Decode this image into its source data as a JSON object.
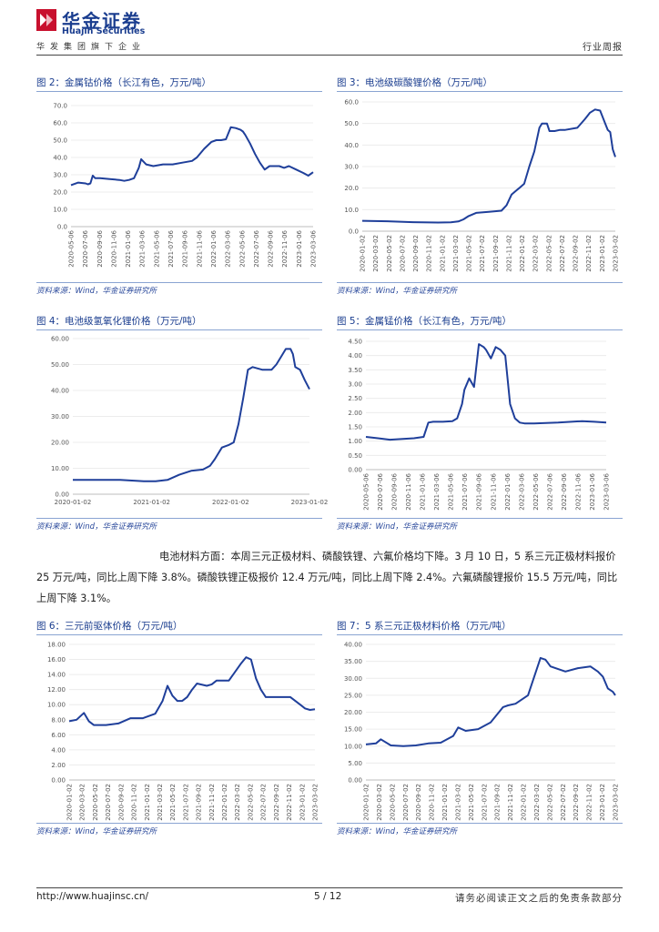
{
  "header": {
    "company_cn": "华金证券",
    "company_en": "Huajin Securities",
    "tagline": "华发集团旗下企业",
    "report_type": "行业周报"
  },
  "colors": {
    "brand": "#1a3d8f",
    "series": "#1f3f9a",
    "axis": "#d0d0d0"
  },
  "figures": [
    {
      "title": "图 2：金属钴价格（长江有色，万元/吨）",
      "source": "资料来源：Wind，华金证券研究所"
    },
    {
      "title": "图 3：电池级碳酸锂价格（万元/吨）",
      "source": "资料来源：Wind，华金证券研究所"
    },
    {
      "title": "图 4：电池级氢氧化锂价格（万元/吨）",
      "source": "资料来源：Wind，华金证券研究所"
    },
    {
      "title": "图 5：金属锰价格（长江有色，万元/吨）",
      "source": "资料来源：Wind，华金证券研究所"
    },
    {
      "title": "图 6：三元前驱体价格（万元/吨）",
      "source": "资料来源：Wind，华金证券研究所"
    },
    {
      "title": "图 7：5 系三元正极材料价格（万元/吨）",
      "source": "资料来源：Wind，华金证券研究所"
    }
  ],
  "paragraph": "电池材料方面：本周三元正极材料、磷酸铁锂、六氟价格均下降。3 月 10 日，5 系三元正极材料报价 25 万元/吨，同比上周下降 3.8%。磷酸铁锂正极报价 12.4 万元/吨，同比上周下降 2.4%。六氟磷酸锂报价 15.5 万元/吨，同比上周下降 3.1%。",
  "footer": {
    "url": "http://www.huajinsc.cn/",
    "page": "5 / 12",
    "disclaimer": "请务必阅读正文之后的免责条款部分"
  },
  "chart_data": [
    {
      "type": "line",
      "title": "金属钴价格（长江有色，万元/吨）",
      "ylim": [
        0,
        70
      ],
      "yticks": [
        "0.0",
        "10.0",
        "20.0",
        "30.0",
        "40.0",
        "50.0",
        "60.0",
        "70.0"
      ],
      "xticks": [
        "2020-05-06",
        "2020-07-06",
        "2020-09-06",
        "2020-11-06",
        "2021-01-06",
        "2021-03-06",
        "2021-05-06",
        "2021-07-06",
        "2021-09-06",
        "2021-11-06",
        "2022-01-06",
        "2022-03-06",
        "2022-05-06",
        "2022-07-06",
        "2022-09-06",
        "2022-11-06",
        "2023-01-06",
        "2023-03-06"
      ],
      "x": [
        0,
        0.03,
        0.06,
        0.07,
        0.08,
        0.09,
        0.1,
        0.12,
        0.16,
        0.2,
        0.22,
        0.24,
        0.26,
        0.28,
        0.29,
        0.31,
        0.34,
        0.38,
        0.42,
        0.46,
        0.5,
        0.52,
        0.55,
        0.58,
        0.6,
        0.62,
        0.64,
        0.66,
        0.68,
        0.7,
        0.71,
        0.72,
        0.74,
        0.76,
        0.78,
        0.8,
        0.82,
        0.84,
        0.86,
        0.88,
        0.9,
        0.93,
        0.96,
        0.98,
        1
      ],
      "values": [
        24,
        25.5,
        25,
        24.5,
        25,
        29.5,
        28,
        28,
        27.5,
        27,
        26.5,
        27,
        28,
        34,
        39,
        36,
        35,
        36,
        36,
        37,
        38,
        40,
        45,
        49,
        50,
        50,
        50.5,
        57.5,
        57,
        56,
        55,
        53,
        48,
        42,
        37,
        33,
        35,
        35,
        35,
        34,
        35,
        33,
        31,
        29.5,
        31.5
      ]
    },
    {
      "type": "line",
      "title": "电池级碳酸锂价格（万元/吨）",
      "ylim": [
        0,
        60
      ],
      "yticks": [
        "0.0",
        "10.0",
        "20.0",
        "30.0",
        "40.0",
        "50.0",
        "60.0"
      ],
      "xticks": [
        "2020-01-02",
        "2020-03-02",
        "2020-05-02",
        "2020-07-02",
        "2020-09-02",
        "2020-11-02",
        "2021-01-02",
        "2021-03-02",
        "2021-05-02",
        "2021-07-02",
        "2021-09-02",
        "2021-11-02",
        "2022-01-02",
        "2022-03-02",
        "2022-05-02",
        "2022-07-02",
        "2022-09-02",
        "2022-11-02",
        "2023-01-02",
        "2023-03-02"
      ],
      "x": [
        0,
        0.1,
        0.2,
        0.3,
        0.35,
        0.38,
        0.4,
        0.42,
        0.45,
        0.5,
        0.55,
        0.57,
        0.59,
        0.61,
        0.62,
        0.64,
        0.66,
        0.68,
        0.7,
        0.71,
        0.72,
        0.73,
        0.74,
        0.76,
        0.78,
        0.8,
        0.85,
        0.88,
        0.9,
        0.92,
        0.94,
        0.96,
        0.97,
        0.98,
        0.99,
        1
      ],
      "values": [
        4.8,
        4.6,
        4.2,
        4.0,
        4.1,
        4.5,
        5.5,
        7,
        8.5,
        9,
        9.5,
        12,
        17,
        19,
        20,
        22,
        30,
        37,
        48,
        50,
        50,
        50,
        46.5,
        46.5,
        47,
        47,
        48,
        52,
        55,
        56.5,
        56,
        50,
        47,
        46,
        38,
        34.5
      ]
    },
    {
      "type": "line",
      "title": "电池级氢氧化锂价格（万元/吨）",
      "ylim": [
        0,
        60
      ],
      "yticks": [
        "0.00",
        "10.00",
        "20.00",
        "30.00",
        "40.00",
        "50.00",
        "60.00"
      ],
      "xticks": [
        "2020-01-02",
        "2021-01-02",
        "2022-01-02",
        "2023-01-02"
      ],
      "x": [
        0,
        0.1,
        0.2,
        0.3,
        0.35,
        0.4,
        0.45,
        0.5,
        0.55,
        0.58,
        0.6,
        0.63,
        0.66,
        0.68,
        0.7,
        0.72,
        0.74,
        0.76,
        0.8,
        0.84,
        0.86,
        0.88,
        0.9,
        0.92,
        0.93,
        0.94,
        0.96,
        0.98,
        1
      ],
      "values": [
        5.5,
        5.5,
        5.5,
        5,
        5,
        5.5,
        7.5,
        9,
        9.5,
        11,
        13.5,
        18,
        19,
        20,
        27,
        37,
        48,
        49,
        48,
        48,
        50,
        53,
        56,
        56,
        54,
        49,
        48,
        44,
        40.5
      ]
    },
    {
      "type": "line",
      "title": "金属锰价格（长江有色，万元/吨）",
      "ylim": [
        0,
        4.5
      ],
      "yticks": [
        "0.00",
        "0.50",
        "1.00",
        "1.50",
        "2.00",
        "2.50",
        "3.00",
        "3.50",
        "4.00",
        "4.50"
      ],
      "xticks": [
        "2020-05-06",
        "2020-07-06",
        "2020-09-06",
        "2020-11-06",
        "2021-01-06",
        "2021-03-06",
        "2021-05-06",
        "2021-07-06",
        "2021-09-06",
        "2021-11-06",
        "2022-01-06",
        "2022-03-06",
        "2022-05-06",
        "2022-07-06",
        "2022-09-06",
        "2022-11-06",
        "2023-01-06",
        "2023-03-06"
      ],
      "x": [
        0,
        0.05,
        0.1,
        0.2,
        0.24,
        0.26,
        0.28,
        0.32,
        0.36,
        0.38,
        0.4,
        0.41,
        0.43,
        0.45,
        0.47,
        0.49,
        0.5,
        0.52,
        0.54,
        0.56,
        0.58,
        0.6,
        0.62,
        0.64,
        0.66,
        0.7,
        0.8,
        0.9,
        0.95,
        1
      ],
      "values": [
        1.15,
        1.1,
        1.05,
        1.1,
        1.15,
        1.65,
        1.68,
        1.68,
        1.7,
        1.8,
        2.3,
        2.8,
        3.2,
        2.9,
        4.4,
        4.3,
        4.2,
        3.9,
        4.3,
        4.2,
        4.0,
        2.3,
        1.8,
        1.65,
        1.62,
        1.62,
        1.65,
        1.7,
        1.68,
        1.65
      ]
    },
    {
      "type": "line",
      "title": "三元前驱体价格（万元/吨）",
      "ylim": [
        0,
        18
      ],
      "yticks": [
        "0.00",
        "2.00",
        "4.00",
        "6.00",
        "8.00",
        "10.00",
        "12.00",
        "14.00",
        "16.00",
        "18.00"
      ],
      "xticks": [
        "2020-01-02",
        "2020-03-02",
        "2020-05-02",
        "2020-07-02",
        "2020-09-02",
        "2020-11-02",
        "2021-01-02",
        "2021-03-02",
        "2021-05-02",
        "2021-07-02",
        "2021-09-02",
        "2021-11-02",
        "2022-01-02",
        "2022-03-02",
        "2022-05-02",
        "2022-07-02",
        "2022-09-02",
        "2022-11-02",
        "2023-01-02",
        "2023-03-02"
      ],
      "x": [
        0,
        0.03,
        0.06,
        0.08,
        0.1,
        0.15,
        0.2,
        0.25,
        0.3,
        0.35,
        0.38,
        0.4,
        0.42,
        0.44,
        0.46,
        0.48,
        0.5,
        0.52,
        0.56,
        0.58,
        0.6,
        0.65,
        0.7,
        0.72,
        0.74,
        0.76,
        0.78,
        0.8,
        0.82,
        0.85,
        0.9,
        0.94,
        0.96,
        0.98,
        1
      ],
      "values": [
        7.8,
        8,
        8.9,
        7.8,
        7.3,
        7.3,
        7.5,
        8.2,
        8.2,
        8.8,
        10.5,
        12.5,
        11.2,
        10.5,
        10.5,
        11,
        12,
        12.8,
        12.5,
        12.7,
        13.2,
        13.2,
        15.5,
        16.3,
        16,
        13.5,
        12,
        11,
        11,
        11,
        11,
        10,
        9.5,
        9.3,
        9.4
      ]
    },
    {
      "type": "line",
      "title": "5 系三元正极材料价格（万元/吨）",
      "ylim": [
        0,
        40
      ],
      "yticks": [
        "0.00",
        "5.00",
        "10.00",
        "15.00",
        "20.00",
        "25.00",
        "30.00",
        "35.00",
        "40.00"
      ],
      "xticks": [
        "2020-01-02",
        "2020-03-02",
        "2020-05-02",
        "2020-07-02",
        "2020-09-02",
        "2020-11-02",
        "2021-01-02",
        "2021-03-02",
        "2021-05-02",
        "2021-07-02",
        "2021-09-02",
        "2021-11-02",
        "2022-01-02",
        "2022-03-02",
        "2022-05-02",
        "2022-07-02",
        "2022-09-02",
        "2022-11-02",
        "2023-01-02",
        "2023-03-02"
      ],
      "x": [
        0,
        0.04,
        0.06,
        0.1,
        0.15,
        0.2,
        0.25,
        0.3,
        0.35,
        0.37,
        0.4,
        0.45,
        0.5,
        0.55,
        0.57,
        0.6,
        0.65,
        0.7,
        0.72,
        0.74,
        0.76,
        0.8,
        0.85,
        0.9,
        0.93,
        0.95,
        0.97,
        0.99,
        1
      ],
      "values": [
        10.5,
        10.8,
        12,
        10.2,
        10,
        10.2,
        10.8,
        11,
        13,
        15.5,
        14.5,
        15,
        17,
        21.5,
        22,
        22.5,
        25,
        36,
        35.5,
        33.5,
        33,
        32,
        33,
        33.5,
        32,
        30.5,
        27,
        26,
        25
      ]
    }
  ]
}
